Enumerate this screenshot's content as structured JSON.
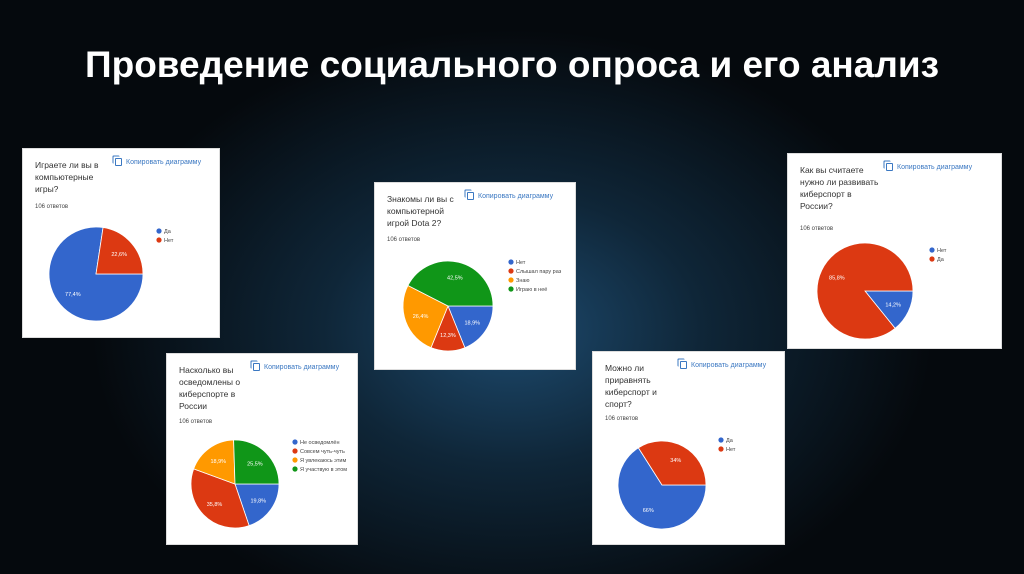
{
  "title": "Проведение социального опроса и его анализ",
  "copy_label": "Копировать диаграмму",
  "colors": [
    "#3366cc",
    "#dc3912",
    "#ff9900",
    "#109618"
  ],
  "chart_data": [
    {
      "type": "pie",
      "title": "Играете ли вы в компьютерные игры?",
      "responses": "106 ответов",
      "categories": [
        "Да",
        "Нет"
      ],
      "values": [
        77.4,
        22.6
      ],
      "labels": [
        "77,4%",
        "22,6%"
      ],
      "legend": "right"
    },
    {
      "type": "pie",
      "title": "Знакомы ли вы с компьютерной игрой Dota 2?",
      "responses": "106 ответов",
      "categories": [
        "Нет",
        "Слышал пару раз",
        "Знаю",
        "Играю в неё"
      ],
      "values": [
        18.9,
        12.3,
        26.4,
        42.5
      ],
      "labels": [
        "18,9%",
        "12,3%",
        "26,4%",
        "42,5%"
      ],
      "legend": "right"
    },
    {
      "type": "pie",
      "title": "Как вы считаете нужно ли развивать киберспорт в России?",
      "responses": "106 ответов",
      "categories": [
        "Нет",
        "Да"
      ],
      "values": [
        14.2,
        85.8
      ],
      "labels": [
        "14,2%",
        "85,8%"
      ],
      "legend": "right"
    },
    {
      "type": "pie",
      "title": "Насколько вы осведомлены о киберспорте в России",
      "responses": "106 ответов",
      "categories": [
        "Не осведомлён",
        "Совсем чуть-чуть",
        "Я увлекаюсь этим",
        "Я участвую в этом"
      ],
      "values": [
        19.8,
        35.8,
        18.9,
        25.5
      ],
      "labels": [
        "19,8%",
        "35,8%",
        "18,9%",
        "25,5%"
      ],
      "legend": "right"
    },
    {
      "type": "pie",
      "title": "Можно ли приравнять киберспорт и спорт?",
      "responses": "106 ответов",
      "categories": [
        "Да",
        "Нет"
      ],
      "values": [
        66,
        34
      ],
      "labels": [
        "66%",
        "34%"
      ],
      "legend": "right"
    }
  ]
}
